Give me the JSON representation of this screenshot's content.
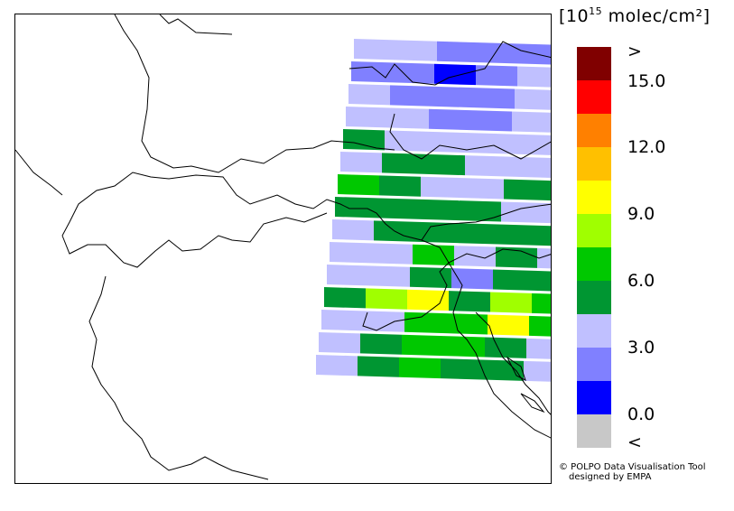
{
  "colorbar": {
    "unit_base": "[10",
    "unit_exp": "15",
    "unit_rest": " molec/cm²]",
    "colors": [
      "#800000",
      "#ff0000",
      "#ff8000",
      "#ffc000",
      "#ffff00",
      "#a0ff00",
      "#00c800",
      "#009632",
      "#c0c0ff",
      "#8080ff",
      "#0000ff",
      "#c8c8c8"
    ],
    "labels": [
      ">",
      "15.0",
      "12.0",
      "9.0",
      "6.0",
      "3.0",
      "0.0",
      "<"
    ]
  },
  "credit": {
    "line1": "© POLPO Data Visualisation Tool",
    "line2": "designed by EMPA"
  },
  "grid_colors": {
    "lav": "#c0c0ff",
    "blu": "#8080ff",
    "dblu": "#0000ff",
    "dg": "#009632",
    "g": "#00c800",
    "lg": "#a0ff00",
    "y": "#ffff00"
  }
}
